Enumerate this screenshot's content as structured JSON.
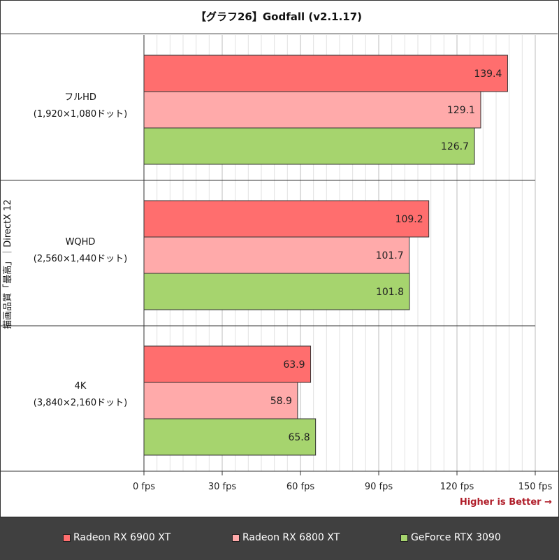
{
  "chart_data": {
    "type": "bar",
    "orientation": "horizontal",
    "title": "【グラフ26】Godfall (v2.1.17)",
    "ylabel": "描画品質「最高」｜DirectX 12",
    "xlabel": "",
    "note": "Higher is Better →",
    "categories": [
      {
        "name": "フルHD",
        "sub": "(1,920×1,080ドット)"
      },
      {
        "name": "WQHD",
        "sub": "(2,560×1,440ドット)"
      },
      {
        "name": "4K",
        "sub": "(3,840×2,160ドット)"
      }
    ],
    "series": [
      {
        "name": "Radeon RX 6900 XT",
        "color": "#ff6e6e",
        "values": [
          139.4,
          109.2,
          63.9
        ]
      },
      {
        "name": "Radeon RX 6800 XT",
        "color": "#ffaaaa",
        "values": [
          129.1,
          101.7,
          58.9
        ]
      },
      {
        "name": "GeForce RTX 3090",
        "color": "#a6d46e",
        "values": [
          126.7,
          101.8,
          65.8
        ]
      }
    ],
    "xlim": [
      0,
      150
    ],
    "xticks": [
      0,
      30,
      60,
      90,
      120,
      150
    ],
    "xtick_labels": [
      "0 fps",
      "30 fps",
      "60 fps",
      "90 fps",
      "120 fps",
      "150 fps"
    ],
    "minor_gridlines": true
  }
}
